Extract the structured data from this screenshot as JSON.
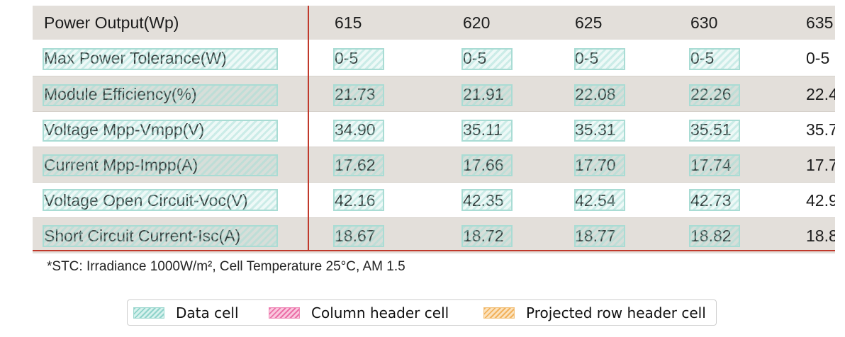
{
  "table": {
    "rows": [
      {
        "label": "Power Output(Wp)",
        "values": [
          "615",
          "620",
          "625",
          "630",
          "635"
        ]
      },
      {
        "label": "Max Power Tolerance(W)",
        "values": [
          "0-5",
          "0-5",
          "0-5",
          "0-5",
          "0-5"
        ]
      },
      {
        "label": "Module Efficiency(%)",
        "values": [
          "21.73",
          "21.91",
          "22.08",
          "22.26",
          "22.4"
        ]
      },
      {
        "label": "Voltage Mpp-Vmpp(V)",
        "values": [
          "34.90",
          "35.11",
          "35.31",
          "35.51",
          "35.7"
        ]
      },
      {
        "label": "Current Mpp-Impp(A)",
        "values": [
          "17.62",
          "17.66",
          "17.70",
          "17.74",
          "17.7"
        ]
      },
      {
        "label": "Voltage Open Circuit-Voc(V)",
        "values": [
          "42.16",
          "42.35",
          "42.54",
          "42.73",
          "42.9"
        ]
      },
      {
        "label": "Short Circuit Current-Isc(A)",
        "values": [
          "18.67",
          "18.72",
          "18.77",
          "18.82",
          "18.8"
        ]
      }
    ]
  },
  "footnote": "*STC: Irradiance 1000W/m², Cell Temperature 25°C, AM 1.5",
  "legend": {
    "data_cell": "Data cell",
    "column_header_cell": "Column header cell",
    "projected_row_header_cell": "Projected row header cell"
  }
}
